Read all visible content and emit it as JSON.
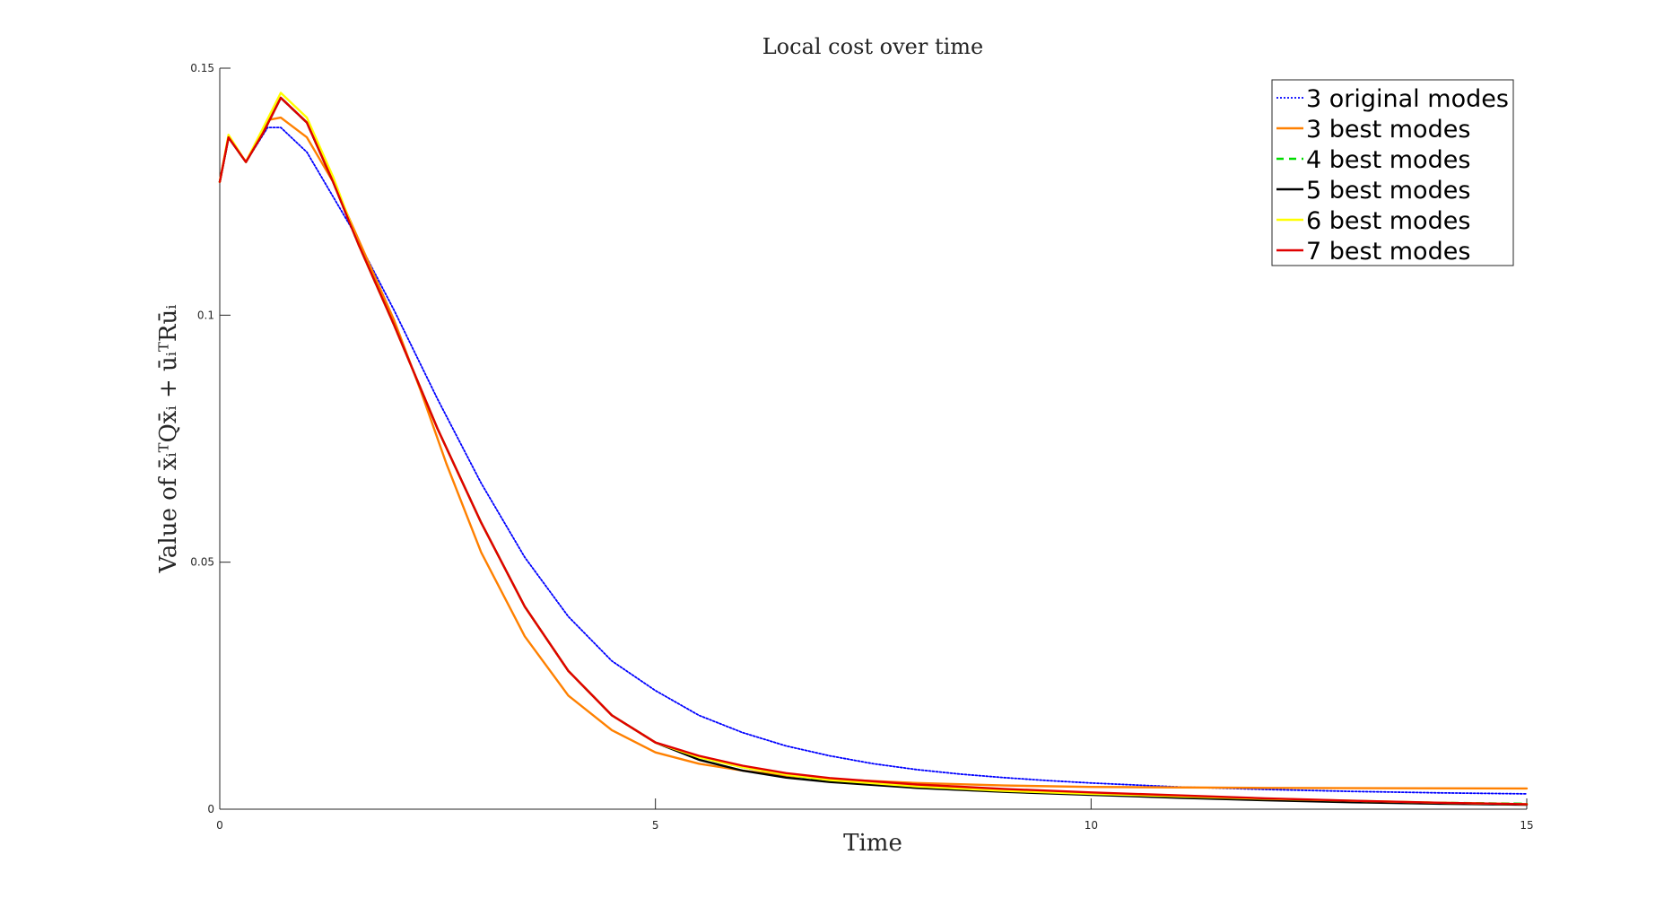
{
  "chart_data": {
    "type": "line",
    "title": "Local cost over time",
    "xlabel": "Time",
    "ylabel": "Value of x̄ᵢᵀQx̄ᵢ + ūᵢᵀRūᵢ",
    "xlim": [
      0,
      15
    ],
    "ylim": [
      0,
      0.15
    ],
    "xticks": [
      "0",
      "5",
      "10",
      "15"
    ],
    "yticks": [
      "0",
      "0.05",
      "0.1",
      "0.15"
    ],
    "grid": false,
    "legend_position": "top-right",
    "series": [
      {
        "name": "3 original modes",
        "color": "#0000ff",
        "style": "dotted",
        "points": [
          [
            0,
            0.127
          ],
          [
            0.1,
            0.136
          ],
          [
            0.3,
            0.131
          ],
          [
            0.55,
            0.138
          ],
          [
            0.7,
            0.138
          ],
          [
            1,
            0.133
          ],
          [
            1.5,
            0.118
          ],
          [
            2,
            0.101
          ],
          [
            2.5,
            0.083
          ],
          [
            3,
            0.066
          ],
          [
            3.5,
            0.051
          ],
          [
            4,
            0.039
          ],
          [
            4.5,
            0.03
          ],
          [
            5,
            0.024
          ],
          [
            5.5,
            0.019
          ],
          [
            6,
            0.0155
          ],
          [
            6.5,
            0.0128
          ],
          [
            7,
            0.0108
          ],
          [
            7.5,
            0.0092
          ],
          [
            8,
            0.008
          ],
          [
            8.5,
            0.0071
          ],
          [
            9,
            0.0064
          ],
          [
            9.5,
            0.0058
          ],
          [
            10,
            0.0053
          ],
          [
            11,
            0.0045
          ],
          [
            12,
            0.004
          ],
          [
            13,
            0.0036
          ],
          [
            14,
            0.0033
          ],
          [
            15,
            0.0031
          ]
        ]
      },
      {
        "name": "3 best modes",
        "color": "#ff8000",
        "style": "solid",
        "points": [
          [
            0,
            0.127
          ],
          [
            0.1,
            0.136
          ],
          [
            0.3,
            0.131
          ],
          [
            0.55,
            0.1395
          ],
          [
            0.7,
            0.14
          ],
          [
            1,
            0.136
          ],
          [
            1.3,
            0.127
          ],
          [
            1.6,
            0.115
          ],
          [
            2,
            0.099
          ],
          [
            2.3,
            0.085
          ],
          [
            2.6,
            0.07
          ],
          [
            3,
            0.052
          ],
          [
            3.5,
            0.035
          ],
          [
            4,
            0.023
          ],
          [
            4.5,
            0.016
          ],
          [
            5,
            0.0115
          ],
          [
            5.5,
            0.0092
          ],
          [
            6,
            0.0078
          ],
          [
            6.5,
            0.0068
          ],
          [
            7,
            0.0061
          ],
          [
            8,
            0.0053
          ],
          [
            9,
            0.0048
          ],
          [
            10,
            0.0045
          ],
          [
            12,
            0.0043
          ],
          [
            15,
            0.0042
          ]
        ]
      },
      {
        "name": "4 best modes",
        "color": "#00dd00",
        "style": "dashed",
        "points": [
          [
            0,
            0.127
          ],
          [
            0.1,
            0.136
          ],
          [
            0.3,
            0.131
          ],
          [
            0.5,
            0.137
          ],
          [
            0.7,
            0.144
          ],
          [
            1,
            0.139
          ],
          [
            1.3,
            0.127
          ],
          [
            1.6,
            0.114
          ],
          [
            2,
            0.098
          ],
          [
            2.5,
            0.077
          ],
          [
            3,
            0.058
          ],
          [
            3.5,
            0.041
          ],
          [
            4,
            0.028
          ],
          [
            4.5,
            0.019
          ],
          [
            5,
            0.0135
          ],
          [
            5.5,
            0.0105
          ],
          [
            6,
            0.0085
          ],
          [
            6.5,
            0.007
          ],
          [
            7,
            0.0058
          ],
          [
            8,
            0.0045
          ],
          [
            9,
            0.0036
          ],
          [
            10,
            0.003
          ],
          [
            11,
            0.0025
          ],
          [
            12,
            0.002
          ],
          [
            13,
            0.0016
          ],
          [
            14,
            0.0013
          ],
          [
            15,
            0.0011
          ]
        ]
      },
      {
        "name": "5 best modes",
        "color": "#000000",
        "style": "solid",
        "points": [
          [
            0,
            0.127
          ],
          [
            0.1,
            0.136
          ],
          [
            0.3,
            0.131
          ],
          [
            0.5,
            0.137
          ],
          [
            0.7,
            0.144
          ],
          [
            1,
            0.139
          ],
          [
            1.3,
            0.127
          ],
          [
            1.6,
            0.114
          ],
          [
            2,
            0.098
          ],
          [
            2.5,
            0.077
          ],
          [
            3,
            0.058
          ],
          [
            3.5,
            0.041
          ],
          [
            4,
            0.028
          ],
          [
            4.5,
            0.019
          ],
          [
            5,
            0.0135
          ],
          [
            5.5,
            0.01
          ],
          [
            6,
            0.0078
          ],
          [
            6.5,
            0.0064
          ],
          [
            7,
            0.0055
          ],
          [
            8,
            0.0043
          ],
          [
            9,
            0.0035
          ],
          [
            10,
            0.0029
          ],
          [
            11,
            0.0023
          ],
          [
            12,
            0.0018
          ],
          [
            13,
            0.0014
          ],
          [
            14,
            0.0011
          ],
          [
            15,
            0.0009
          ]
        ]
      },
      {
        "name": "6 best modes",
        "color": "#ffff00",
        "style": "solid",
        "points": [
          [
            0,
            0.127
          ],
          [
            0.1,
            0.1365
          ],
          [
            0.3,
            0.131
          ],
          [
            0.5,
            0.138
          ],
          [
            0.7,
            0.145
          ],
          [
            1,
            0.14
          ],
          [
            1.3,
            0.128
          ],
          [
            1.6,
            0.114
          ],
          [
            2,
            0.098
          ],
          [
            2.5,
            0.077
          ],
          [
            3,
            0.058
          ],
          [
            3.5,
            0.041
          ],
          [
            4,
            0.028
          ],
          [
            4.5,
            0.019
          ],
          [
            5,
            0.0135
          ],
          [
            5.5,
            0.0105
          ],
          [
            6,
            0.0085
          ],
          [
            6.5,
            0.007
          ],
          [
            7,
            0.0059
          ],
          [
            8,
            0.0046
          ],
          [
            9,
            0.0037
          ],
          [
            10,
            0.0031
          ],
          [
            11,
            0.0026
          ],
          [
            12,
            0.0021
          ],
          [
            13,
            0.0017
          ],
          [
            14,
            0.0013
          ],
          [
            15,
            0.001
          ]
        ]
      },
      {
        "name": "7 best modes",
        "color": "#e00000",
        "style": "solid",
        "points": [
          [
            0,
            0.127
          ],
          [
            0.1,
            0.136
          ],
          [
            0.3,
            0.131
          ],
          [
            0.5,
            0.137
          ],
          [
            0.7,
            0.144
          ],
          [
            1,
            0.139
          ],
          [
            1.3,
            0.127
          ],
          [
            1.6,
            0.114
          ],
          [
            2,
            0.098
          ],
          [
            2.5,
            0.077
          ],
          [
            3,
            0.058
          ],
          [
            3.5,
            0.041
          ],
          [
            4,
            0.028
          ],
          [
            4.5,
            0.019
          ],
          [
            5,
            0.0135
          ],
          [
            5.5,
            0.0108
          ],
          [
            6,
            0.0088
          ],
          [
            6.5,
            0.0073
          ],
          [
            7,
            0.0063
          ],
          [
            8,
            0.005
          ],
          [
            9,
            0.0041
          ],
          [
            10,
            0.0034
          ],
          [
            11,
            0.0028
          ],
          [
            12,
            0.0022
          ],
          [
            13,
            0.0017
          ],
          [
            14,
            0.0013
          ],
          [
            15,
            0.001
          ]
        ]
      }
    ]
  }
}
